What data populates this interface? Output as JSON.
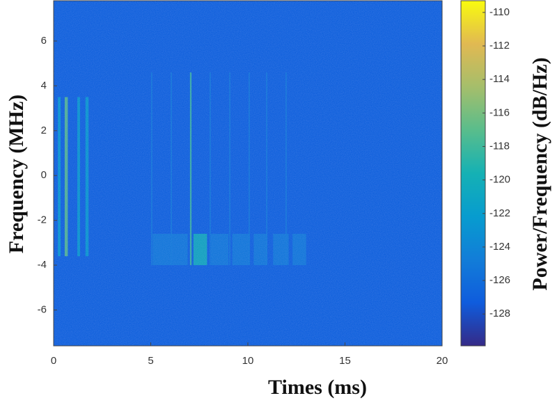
{
  "chart_data": {
    "type": "spectrogram",
    "xlabel": "Times (ms)",
    "ylabel": "Frequency (MHz)",
    "colorbar_label": "Power/Frequency (dB/Hz)",
    "colormap": "parula",
    "xlim": [
      0,
      20
    ],
    "ylim": [
      -7.6,
      7.8
    ],
    "xticks": [
      0,
      5,
      10,
      15,
      20
    ],
    "yticks": [
      -6,
      -4,
      -2,
      0,
      2,
      4,
      6
    ],
    "clim": [
      -129.9,
      -109.3
    ],
    "cticks": [
      -128,
      -126,
      -124,
      -122,
      -120,
      -118,
      -116,
      -114,
      -112,
      -110
    ],
    "background_power": -127,
    "bursts": [
      {
        "t": [
          0.22,
          0.36
        ],
        "f": [
          -3.6,
          3.5
        ],
        "power": -122
      },
      {
        "t": [
          0.57,
          0.73
        ],
        "f": [
          -3.6,
          3.5
        ],
        "power": -117
      },
      {
        "t": [
          1.22,
          1.36
        ],
        "f": [
          -3.6,
          3.5
        ],
        "power": -122
      },
      {
        "t": [
          1.64,
          1.8
        ],
        "f": [
          -3.6,
          3.5
        ],
        "power": -122
      },
      {
        "t": [
          5.1,
          6.9
        ],
        "f": [
          -4.0,
          -2.6
        ],
        "power": -125
      },
      {
        "t": [
          7.2,
          7.9
        ],
        "f": [
          -4.0,
          -2.6
        ],
        "power": -120
      },
      {
        "t": [
          8.1,
          9.0
        ],
        "f": [
          -4.0,
          -2.6
        ],
        "power": -125
      },
      {
        "t": [
          9.2,
          10.1
        ],
        "f": [
          -4.0,
          -2.6
        ],
        "power": -125
      },
      {
        "t": [
          10.3,
          11.0
        ],
        "f": [
          -4.0,
          -2.6
        ],
        "power": -125
      },
      {
        "t": [
          11.3,
          12.1
        ],
        "f": [
          -4.0,
          -2.6
        ],
        "power": -125
      },
      {
        "t": [
          12.3,
          13.0
        ],
        "f": [
          -4.0,
          -2.6
        ],
        "power": -125
      },
      {
        "t": [
          5.02,
          5.08
        ],
        "f": [
          -4.0,
          4.6
        ],
        "power": -125
      },
      {
        "t": [
          6.03,
          6.09
        ],
        "f": [
          -4.0,
          4.6
        ],
        "power": -125
      },
      {
        "t": [
          7.02,
          7.1
        ],
        "f": [
          -4.0,
          4.6
        ],
        "power": -118
      },
      {
        "t": [
          8.03,
          8.09
        ],
        "f": [
          -4.0,
          4.6
        ],
        "power": -125
      },
      {
        "t": [
          9.04,
          9.1
        ],
        "f": [
          -4.0,
          4.6
        ],
        "power": -125
      },
      {
        "t": [
          10.04,
          10.1
        ],
        "f": [
          -4.0,
          4.6
        ],
        "power": -125
      },
      {
        "t": [
          10.94,
          11.0
        ],
        "f": [
          -4.0,
          4.6
        ],
        "power": -125
      },
      {
        "t": [
          11.94,
          12.0
        ],
        "f": [
          -4.0,
          4.6
        ],
        "power": -125
      }
    ]
  }
}
